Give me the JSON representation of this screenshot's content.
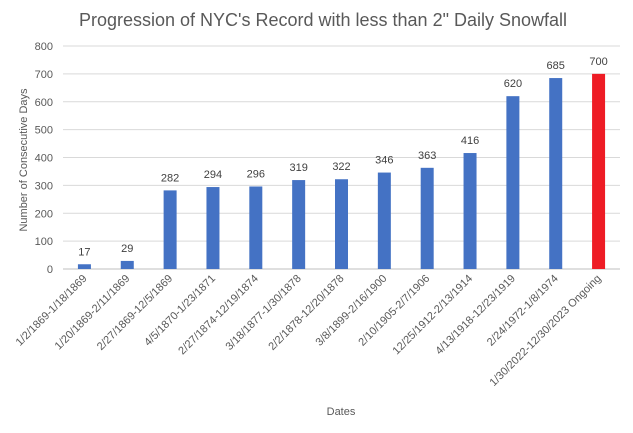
{
  "chart_data": {
    "type": "bar",
    "title": "Progression of NYC's Record with less than 2\" Daily Snowfall",
    "xlabel": "Dates",
    "ylabel": "Number of Consecutive Days",
    "ylim": [
      0,
      800
    ],
    "yticks": [
      0,
      100,
      200,
      300,
      400,
      500,
      600,
      700,
      800
    ],
    "grid": true,
    "legend": "none",
    "categories": [
      "1/2/1869-1/18/1869",
      "1/20/1869-2/11/1869",
      "2/27/1869-12/5/1869",
      "4/5/1870-1/23/1871",
      "2/27/1874-12/19/1874",
      "3/18/1877-1/30/1878",
      "2/2/1878-12/20/1878",
      "3/8/1899-2/16/1900",
      "2/10/1905-2/7/1906",
      "12/25/1912-2/13/1914",
      "4/13/1918-12/23/1919",
      "2/24/1972-1/8/1974",
      "1/30/2022-12/30/2023 Ongoing"
    ],
    "values": [
      17,
      29,
      282,
      294,
      296,
      319,
      322,
      346,
      363,
      416,
      620,
      685,
      700
    ],
    "colors": {
      "default": "#4472c4",
      "highlight": "#ee1c25"
    },
    "highlight_index": 12
  }
}
